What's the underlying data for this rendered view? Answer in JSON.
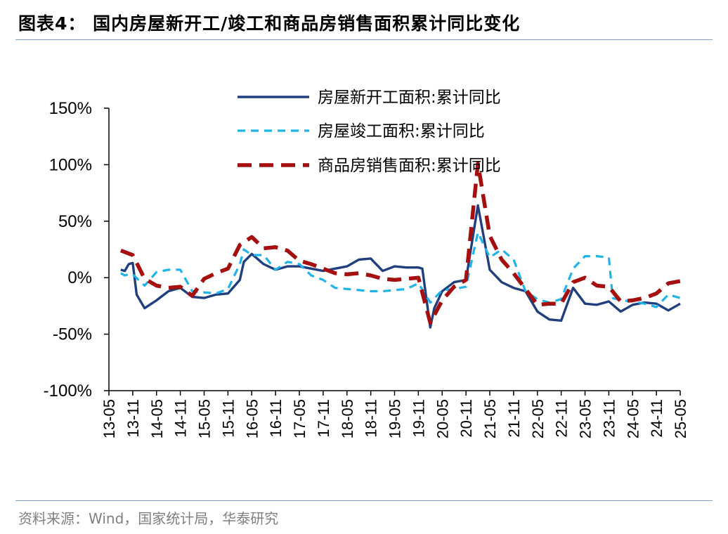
{
  "header": {
    "title": "图表4：  国内房屋新开工/竣工和商品房销售面积累计同比变化"
  },
  "footer": {
    "source": "资料来源：Wind，国家统计局，华泰研究"
  },
  "chart_data": {
    "type": "line",
    "title": "图表4：  国内房屋新开工/竣工和商品房销售面积累计同比变化",
    "xlabel": "",
    "ylabel": "",
    "y_tick_labels": [
      "150%",
      "100%",
      "50%",
      "0%",
      "-50%",
      "-100%"
    ],
    "x_tick_labels": [
      "13-05",
      "13-11",
      "14-05",
      "14-11",
      "15-05",
      "15-11",
      "16-05",
      "16-11",
      "17-05",
      "17-11",
      "18-05",
      "18-11",
      "19-05",
      "19-11",
      "20-05",
      "20-11",
      "21-05",
      "21-11",
      "22-05",
      "22-11",
      "23-05",
      "23-11",
      "24-05",
      "24-11",
      "25-05"
    ],
    "ylim": [
      -100,
      150
    ],
    "grid": false,
    "legend_position": "top-center",
    "series": [
      {
        "name": "房屋新开工面积:累计同比",
        "color": "#1f3f7f",
        "style": "solid",
        "points": [
          [
            "13-08",
            7
          ],
          [
            "13-09",
            6
          ],
          [
            "13-10",
            12
          ],
          [
            "13-11",
            13
          ],
          [
            "13-12",
            -15
          ],
          [
            "14-02",
            -27
          ],
          [
            "14-05",
            -20
          ],
          [
            "14-08",
            -12
          ],
          [
            "14-11",
            -9
          ],
          [
            "15-02",
            -17
          ],
          [
            "15-05",
            -18
          ],
          [
            "15-08",
            -15
          ],
          [
            "15-11",
            -14
          ],
          [
            "16-02",
            -2
          ],
          [
            "16-03",
            14
          ],
          [
            "16-05",
            21
          ],
          [
            "16-08",
            12
          ],
          [
            "16-11",
            7
          ],
          [
            "17-02",
            10
          ],
          [
            "17-05",
            10
          ],
          [
            "17-08",
            8
          ],
          [
            "17-11",
            6
          ],
          [
            "18-02",
            8
          ],
          [
            "18-05",
            10
          ],
          [
            "18-08",
            16
          ],
          [
            "18-11",
            17
          ],
          [
            "19-02",
            6
          ],
          [
            "19-05",
            10
          ],
          [
            "19-08",
            9
          ],
          [
            "19-11",
            9
          ],
          [
            "19-12",
            8
          ],
          [
            "20-02",
            -44
          ],
          [
            "20-03",
            -27
          ],
          [
            "20-05",
            -12
          ],
          [
            "20-08",
            -4
          ],
          [
            "20-11",
            -2
          ],
          [
            "21-02",
            64
          ],
          [
            "21-05",
            7
          ],
          [
            "21-08",
            -4
          ],
          [
            "21-11",
            -9
          ],
          [
            "22-02",
            -12
          ],
          [
            "22-05",
            -30
          ],
          [
            "22-08",
            -37
          ],
          [
            "22-11",
            -38
          ],
          [
            "23-02",
            -9
          ],
          [
            "23-05",
            -23
          ],
          [
            "23-08",
            -24
          ],
          [
            "23-11",
            -21
          ],
          [
            "24-02",
            -30
          ],
          [
            "24-05",
            -24
          ],
          [
            "24-08",
            -22
          ],
          [
            "24-11",
            -23
          ],
          [
            "25-02",
            -29
          ],
          [
            "25-05",
            -23
          ]
        ]
      },
      {
        "name": "房屋竣工面积:累计同比",
        "color": "#1fb4e8",
        "style": "dashed",
        "points": [
          [
            "13-08",
            4
          ],
          [
            "13-09",
            2
          ],
          [
            "13-10",
            3
          ],
          [
            "13-11",
            3
          ],
          [
            "14-02",
            -7
          ],
          [
            "14-05",
            5
          ],
          [
            "14-08",
            7
          ],
          [
            "14-11",
            7
          ],
          [
            "15-02",
            -12
          ],
          [
            "15-05",
            -13
          ],
          [
            "15-08",
            -14
          ],
          [
            "15-11",
            -10
          ],
          [
            "16-02",
            12
          ],
          [
            "16-03",
            25
          ],
          [
            "16-05",
            20
          ],
          [
            "16-08",
            20
          ],
          [
            "16-11",
            7
          ],
          [
            "17-02",
            14
          ],
          [
            "17-05",
            12
          ],
          [
            "17-08",
            2
          ],
          [
            "17-11",
            -2
          ],
          [
            "18-02",
            -9
          ],
          [
            "18-05",
            -10
          ],
          [
            "18-08",
            -11
          ],
          [
            "18-11",
            -12
          ],
          [
            "19-02",
            -12
          ],
          [
            "19-05",
            -11
          ],
          [
            "19-08",
            -10
          ],
          [
            "19-11",
            -5
          ],
          [
            "20-02",
            -22
          ],
          [
            "20-05",
            -11
          ],
          [
            "20-08",
            -10
          ],
          [
            "20-11",
            -8
          ],
          [
            "21-02",
            40
          ],
          [
            "21-05",
            18
          ],
          [
            "21-08",
            25
          ],
          [
            "21-11",
            16
          ],
          [
            "22-02",
            -12
          ],
          [
            "22-05",
            -19
          ],
          [
            "22-08",
            -22
          ],
          [
            "22-11",
            -19
          ],
          [
            "23-02",
            8
          ],
          [
            "23-05",
            19
          ],
          [
            "23-08",
            19
          ],
          [
            "23-11",
            18
          ],
          [
            "23-12",
            -18
          ],
          [
            "24-02",
            -20
          ],
          [
            "24-05",
            -21
          ],
          [
            "24-08",
            -23
          ],
          [
            "24-11",
            -26
          ],
          [
            "25-02",
            -15
          ],
          [
            "25-05",
            -18
          ]
        ]
      },
      {
        "name": "商品房销售面积:累计同比",
        "color": "#a50f0f",
        "style": "dashed",
        "points": [
          [
            "13-08",
            24
          ],
          [
            "13-11",
            20
          ],
          [
            "14-02",
            -1
          ],
          [
            "14-05",
            -7
          ],
          [
            "14-08",
            -9
          ],
          [
            "14-11",
            -8
          ],
          [
            "15-02",
            -16
          ],
          [
            "15-05",
            -1
          ],
          [
            "15-08",
            4
          ],
          [
            "15-11",
            8
          ],
          [
            "16-02",
            29
          ],
          [
            "16-05",
            36
          ],
          [
            "16-08",
            26
          ],
          [
            "16-11",
            27
          ],
          [
            "17-02",
            24
          ],
          [
            "17-05",
            15
          ],
          [
            "17-08",
            12
          ],
          [
            "17-11",
            8
          ],
          [
            "18-02",
            4
          ],
          [
            "18-05",
            3
          ],
          [
            "18-08",
            4
          ],
          [
            "18-11",
            2
          ],
          [
            "19-02",
            -1
          ],
          [
            "19-05",
            -2
          ],
          [
            "19-08",
            -1
          ],
          [
            "19-11",
            0
          ],
          [
            "20-02",
            -40
          ],
          [
            "20-05",
            -20
          ],
          [
            "20-08",
            -8
          ],
          [
            "20-11",
            -2
          ],
          [
            "21-02",
            101
          ],
          [
            "21-05",
            37
          ],
          [
            "21-08",
            16
          ],
          [
            "21-11",
            4
          ],
          [
            "22-02",
            -10
          ],
          [
            "22-05",
            -24
          ],
          [
            "22-08",
            -23
          ],
          [
            "22-11",
            -23
          ],
          [
            "23-02",
            -4
          ],
          [
            "23-05",
            0
          ],
          [
            "23-08",
            -7
          ],
          [
            "23-11",
            -8
          ],
          [
            "24-02",
            -21
          ],
          [
            "24-05",
            -20
          ],
          [
            "24-08",
            -18
          ],
          [
            "24-11",
            -14
          ],
          [
            "25-02",
            -5
          ],
          [
            "25-05",
            -3
          ]
        ]
      }
    ]
  }
}
